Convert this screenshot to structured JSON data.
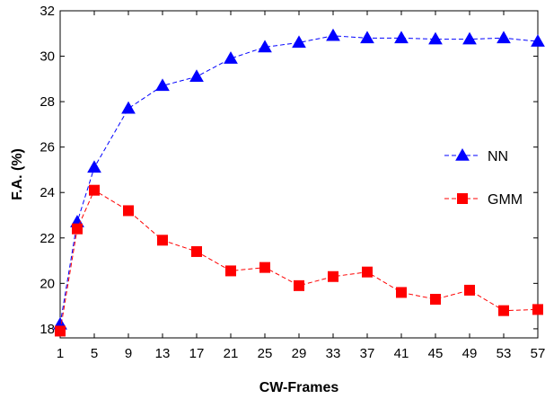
{
  "chart_data": {
    "type": "line",
    "x": [
      1,
      3,
      5,
      9,
      13,
      17,
      21,
      25,
      29,
      33,
      37,
      41,
      45,
      49,
      53,
      57
    ],
    "xticks": [
      1,
      5,
      9,
      13,
      17,
      21,
      25,
      29,
      33,
      37,
      41,
      45,
      49,
      53,
      57
    ],
    "yticks": [
      18,
      20,
      22,
      24,
      26,
      28,
      30,
      32
    ],
    "xlim": [
      1,
      57
    ],
    "ylim": [
      17.6,
      32
    ],
    "xlabel": "CW-Frames",
    "ylabel": "F.A. (%)",
    "grid": false,
    "legend_position": "right",
    "series": [
      {
        "name": "NN",
        "color": "#0000ff",
        "marker": "triangle",
        "values": [
          18.2,
          22.7,
          25.1,
          27.7,
          28.7,
          29.1,
          29.9,
          30.4,
          30.6,
          30.9,
          30.8,
          30.8,
          30.75,
          30.75,
          30.8,
          30.65
        ]
      },
      {
        "name": "GMM",
        "color": "#ff0000",
        "marker": "square",
        "values": [
          17.9,
          22.4,
          24.1,
          23.2,
          21.9,
          21.4,
          20.55,
          20.7,
          19.9,
          20.3,
          20.5,
          19.6,
          19.3,
          19.7,
          18.8,
          18.85
        ]
      }
    ]
  }
}
